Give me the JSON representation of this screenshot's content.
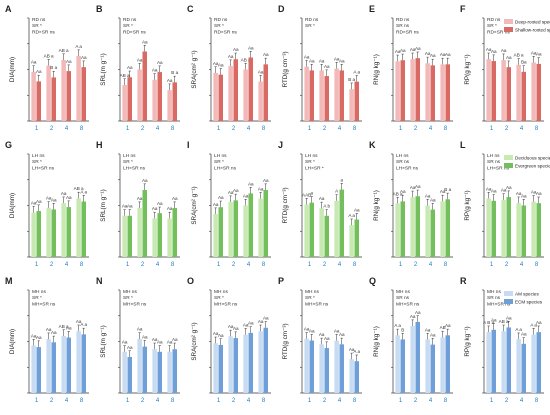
{
  "figure": {
    "x_categories": [
      "1",
      "2",
      "4",
      "8"
    ],
    "legends": [
      {
        "entries": [
          {
            "label": "Deep-rooted species",
            "color": "#f3b8b8"
          },
          {
            "label": "Shallow-rooted species",
            "color": "#d96a63"
          }
        ]
      },
      {
        "entries": [
          {
            "label": "Deciduous species",
            "color": "#c9e9b2"
          },
          {
            "label": "Evergreen species",
            "color": "#72bf5c"
          }
        ]
      },
      {
        "entries": [
          {
            "label": "AM species",
            "color": "#c7dcf3"
          },
          {
            "label": "ECM species",
            "color": "#6f9fd8"
          }
        ]
      }
    ]
  },
  "chart_data": [
    {
      "type": "bar",
      "panel": "A",
      "ylabel": "DIA(mm)",
      "ylim": [
        0,
        1.3
      ],
      "categories": [
        "1",
        "2",
        "4",
        "8"
      ],
      "stats": [
        "RD ns",
        "SR *",
        "RD×SR ns"
      ],
      "series": [
        {
          "name": "Deep-rooted species",
          "values": [
            0.62,
            0.7,
            0.77,
            0.82
          ]
        },
        {
          "name": "Shallow-rooted species",
          "values": [
            0.5,
            0.55,
            0.63,
            0.68
          ]
        }
      ],
      "letters": [
        [
          "Aa",
          "AB a",
          "AB a",
          "A a"
        ],
        [
          "Aa",
          "B a",
          "Aa",
          "Aa"
        ]
      ]
    },
    {
      "type": "bar",
      "panel": "B",
      "ylabel": "SRL(m g⁻¹)",
      "ylim": [
        0,
        40
      ],
      "categories": [
        "1",
        "2",
        "4",
        "8"
      ],
      "stats": [
        "RD ns",
        "SR *",
        "RD×SR ns"
      ],
      "series": [
        {
          "name": "Deep-rooted species",
          "values": [
            14,
            20,
            16,
            12
          ]
        },
        {
          "name": "Shallow-rooted species",
          "values": [
            17,
            27,
            19,
            15
          ]
        }
      ],
      "letters": [
        [
          "AB a",
          "Aa",
          "Aa",
          "Aa"
        ],
        [
          "Aa",
          "Aa",
          "Aa",
          "B a"
        ]
      ]
    },
    {
      "type": "bar",
      "panel": "C",
      "ylabel": "SRA(cm² g⁻¹)",
      "ylim": [
        0,
        60
      ],
      "categories": [
        "1",
        "2",
        "4",
        "8"
      ],
      "stats": [
        "RD ns",
        "SR *",
        "RD×SR ns"
      ],
      "series": [
        {
          "name": "Deep-rooted species",
          "values": [
            28,
            32,
            30,
            23
          ]
        },
        {
          "name": "Shallow-rooted species",
          "values": [
            27,
            36,
            37,
            33
          ]
        }
      ],
      "letters": [
        [
          "Aa",
          "Aa",
          "AB a",
          "Aa"
        ],
        [
          "Aa",
          "Aa",
          "Aa",
          "Aa"
        ]
      ]
    },
    {
      "type": "bar",
      "panel": "D",
      "ylabel": "RTD(g cm⁻³)",
      "ylim": [
        0,
        0.55
      ],
      "categories": [
        "1",
        "2",
        "4",
        "8"
      ],
      "stats": [
        "RD ns",
        "SR *"
      ],
      "series": [
        {
          "name": "Deep-rooted species",
          "values": [
            0.29,
            0.27,
            0.28,
            0.17
          ]
        },
        {
          "name": "Shallow-rooted species",
          "values": [
            0.27,
            0.24,
            0.27,
            0.21
          ]
        }
      ],
      "letters": [
        [
          "Aa",
          "Aa",
          "Aa",
          "B a"
        ],
        [
          "Aa",
          "Aa",
          "Aa",
          "A a"
        ]
      ]
    },
    {
      "type": "bar",
      "panel": "E",
      "ylabel": "RN(g kg⁻¹)",
      "ylim": [
        0,
        10
      ],
      "categories": [
        "1",
        "2",
        "4",
        "8"
      ],
      "stats": [
        "RD ns",
        "SR ns",
        "RD×SR ns"
      ],
      "series": [
        {
          "name": "Deep-rooted species",
          "values": [
            5.8,
            6.0,
            5.6,
            5.5
          ]
        },
        {
          "name": "Shallow-rooted species",
          "values": [
            5.9,
            6.1,
            5.4,
            5.5
          ]
        }
      ],
      "letters": [
        [
          "Aa",
          "Aa",
          "Aa",
          "Aa"
        ],
        [
          "Aa",
          "Aa",
          "Aa",
          "Aa"
        ]
      ]
    },
    {
      "type": "bar",
      "panel": "F",
      "ylabel": "RP(g kg⁻¹)",
      "ylim": [
        0,
        2.2
      ],
      "categories": [
        "1",
        "2",
        "4",
        "8"
      ],
      "stats": [
        "RD ns",
        "SR *",
        "RD×SR ns"
      ],
      "series": [
        {
          "name": "Deep-rooted species",
          "values": [
            1.32,
            1.3,
            1.2,
            1.25
          ]
        },
        {
          "name": "Shallow-rooted species",
          "values": [
            1.28,
            1.15,
            1.05,
            1.22
          ]
        }
      ],
      "letters": [
        [
          "Aa",
          "Aa",
          "AB a",
          "Aa"
        ],
        [
          "Aa",
          "Aa",
          "Ba",
          "Aa"
        ]
      ]
    },
    {
      "type": "bar",
      "panel": "G",
      "ylabel": "DIA(mm)",
      "ylim": [
        0,
        1.3
      ],
      "categories": [
        "1",
        "2",
        "4",
        "8"
      ],
      "stats": [
        "LH ns",
        "SR *",
        "LH×SR ns"
      ],
      "series": [
        {
          "name": "Deciduous species",
          "values": [
            0.56,
            0.62,
            0.68,
            0.74
          ]
        },
        {
          "name": "Evergreen species",
          "values": [
            0.58,
            0.6,
            0.63,
            0.7
          ]
        }
      ],
      "letters": [
        [
          "Aa",
          "Aa",
          "Aa",
          "AB a"
        ],
        [
          "Aa",
          "Aa",
          "Aa",
          "A a"
        ]
      ]
    },
    {
      "type": "bar",
      "panel": "H",
      "ylabel": "SRL(m g⁻¹)",
      "ylim": [
        0,
        40
      ],
      "categories": [
        "1",
        "2",
        "4",
        "8"
      ],
      "stats": [
        "LH ns",
        "SR *",
        "LH×SR ns"
      ],
      "series": [
        {
          "name": "Deciduous species",
          "values": [
            16,
            19,
            15,
            15
          ]
        },
        {
          "name": "Evergreen species",
          "values": [
            16,
            26,
            17,
            19
          ]
        }
      ],
      "letters": [
        [
          "Aa",
          "Aa",
          "Aa",
          "Aa"
        ],
        [
          "Aa",
          "Aa",
          "Aa",
          "Aa"
        ]
      ]
    },
    {
      "type": "bar",
      "panel": "I",
      "ylabel": "SRA(cm² g⁻¹)",
      "ylim": [
        0,
        60
      ],
      "categories": [
        "1",
        "2",
        "4",
        "8"
      ],
      "stats": [
        "LH ns",
        "SR *",
        "LH×SR ns"
      ],
      "series": [
        {
          "name": "Deciduous species",
          "values": [
            25,
            32,
            30,
            34
          ]
        },
        {
          "name": "Evergreen species",
          "values": [
            29,
            33,
            37,
            39
          ]
        }
      ],
      "letters": [
        [
          "Aa",
          "Aa",
          "Aa",
          "Aa"
        ],
        [
          "Aa",
          "Aa",
          "Aa",
          "Aa"
        ]
      ]
    },
    {
      "type": "bar",
      "panel": "J",
      "ylabel": "RTD(g cm⁻³)",
      "ylim": [
        0,
        0.55
      ],
      "categories": [
        "1",
        "2",
        "4",
        "8"
      ],
      "stats": [
        "LH ns",
        "SR *",
        "LH×SR *"
      ],
      "series": [
        {
          "name": "Deciduous species",
          "values": [
            0.28,
            0.26,
            0.3,
            0.17
          ]
        },
        {
          "name": "Evergreen species",
          "values": [
            0.29,
            0.22,
            0.36,
            0.2
          ]
        }
      ],
      "letters": [
        [
          "AAB",
          "Aa",
          "A",
          "A a"
        ],
        [
          "a",
          "A b",
          "a",
          "Aa"
        ]
      ]
    },
    {
      "type": "bar",
      "panel": "K",
      "ylabel": "RN(g kg⁻¹)",
      "ylim": [
        0,
        10
      ],
      "categories": [
        "1",
        "2",
        "4",
        "8"
      ],
      "stats": [
        "LH ns",
        "SR ns",
        "LH×SR ns"
      ],
      "series": [
        {
          "name": "Deciduous species",
          "values": [
            5.2,
            5.8,
            5.0,
            5.4
          ]
        },
        {
          "name": "Evergreen species",
          "values": [
            5.4,
            5.9,
            4.6,
            5.6
          ]
        }
      ],
      "letters": [
        [
          "AB a",
          "Aa",
          "Aa",
          "Aa"
        ],
        [
          "Aa",
          "Aa",
          "Aa",
          "B a"
        ]
      ]
    },
    {
      "type": "bar",
      "panel": "L",
      "ylabel": "RP(g kg⁻¹)",
      "ylim": [
        0,
        2.2
      ],
      "categories": [
        "1",
        "2",
        "4",
        "8"
      ],
      "stats": [
        "LH ns",
        "SR ns",
        "LH×SR ns"
      ],
      "series": [
        {
          "name": "Deciduous species",
          "values": [
            1.25,
            1.22,
            1.15,
            1.18
          ]
        },
        {
          "name": "Evergreen species",
          "values": [
            1.2,
            1.28,
            1.1,
            1.15
          ]
        }
      ],
      "letters": [
        [
          "Aa",
          "Aa",
          "Aa",
          "Aa"
        ],
        [
          "Aa",
          "Aa",
          "Aa",
          "Aa"
        ]
      ]
    },
    {
      "type": "bar",
      "panel": "M",
      "ylabel": "DIA(mm)",
      "ylim": [
        0,
        1.3
      ],
      "categories": [
        "1",
        "2",
        "4",
        "8"
      ],
      "stats": [
        "MH ns",
        "SR *",
        "MH×SR ns"
      ],
      "series": [
        {
          "name": "AM species",
          "values": [
            0.6,
            0.68,
            0.72,
            0.78
          ]
        },
        {
          "name": "ECM species",
          "values": [
            0.58,
            0.64,
            0.7,
            0.74
          ]
        }
      ],
      "letters": [
        [
          "Aa",
          "Aa",
          "AB a",
          "Aa"
        ],
        [
          "Aa",
          "Aa",
          "Aa",
          "A a"
        ]
      ]
    },
    {
      "type": "bar",
      "panel": "N",
      "ylabel": "SRL(m g⁻¹)",
      "ylim": [
        0,
        40
      ],
      "categories": [
        "1",
        "2",
        "4",
        "8"
      ],
      "stats": [
        "MH ns",
        "SR *",
        "MH×SR ns"
      ],
      "series": [
        {
          "name": "AM species",
          "values": [
            16,
            21,
            17,
            16
          ]
        },
        {
          "name": "ECM species",
          "values": [
            14,
            18,
            16,
            17
          ]
        }
      ],
      "letters": [
        [
          "Aa",
          "Aa",
          "Aa",
          "Aa"
        ],
        [
          "Aa",
          "Aa",
          "Aa",
          "Aa"
        ]
      ]
    },
    {
      "type": "bar",
      "panel": "O",
      "ylabel": "SRA(cm² g⁻¹)",
      "ylim": [
        0,
        60
      ],
      "categories": [
        "1",
        "2",
        "4",
        "8"
      ],
      "stats": [
        "MH ns",
        "SR *",
        "MH×SR ns"
      ],
      "series": [
        {
          "name": "AM species",
          "values": [
            29,
            33,
            34,
            36
          ]
        },
        {
          "name": "ECM species",
          "values": [
            28,
            32,
            35,
            38
          ]
        }
      ],
      "letters": [
        [
          "Aa",
          "Aa",
          "Aa",
          "Aa"
        ],
        [
          "Aa",
          "Aa",
          "Aa",
          "Aa"
        ]
      ]
    },
    {
      "type": "bar",
      "panel": "P",
      "ylabel": "RTD(g cm⁻³)",
      "ylim": [
        0,
        0.55
      ],
      "categories": [
        "1",
        "2",
        "4",
        "8"
      ],
      "stats": [
        "MH ns",
        "SR *",
        "MH×SR ns"
      ],
      "series": [
        {
          "name": "AM species",
          "values": [
            0.29,
            0.26,
            0.28,
            0.18
          ]
        },
        {
          "name": "ECM species",
          "values": [
            0.28,
            0.24,
            0.26,
            0.17
          ]
        }
      ],
      "letters": [
        [
          "Aa",
          "Aa",
          "Aa",
          "Aa"
        ],
        [
          "Aa",
          "Aa",
          "Aa",
          "A a"
        ]
      ]
    },
    {
      "type": "bar",
      "panel": "Q",
      "ylabel": "RN(g kg⁻¹)",
      "ylim": [
        0,
        10
      ],
      "categories": [
        "1",
        "2",
        "4",
        "8"
      ],
      "stats": [
        "MH ns",
        "SR ns",
        "MH×SR ns"
      ],
      "series": [
        {
          "name": "AM species",
          "values": [
            5.6,
            6.5,
            5.2,
            5.4
          ]
        },
        {
          "name": "ECM species",
          "values": [
            5.2,
            6.9,
            4.7,
            5.6
          ]
        }
      ],
      "letters": [
        [
          "A a",
          "Aa",
          "Aa",
          "AB"
        ],
        [
          "B",
          "Aa",
          "Aa",
          "Aa"
        ]
      ]
    },
    {
      "type": "bar",
      "panel": "R",
      "ylabel": "RP(g kg⁻¹)",
      "ylim": [
        0,
        2.2
      ],
      "categories": [
        "1",
        "2",
        "4",
        "8"
      ],
      "stats": [
        "MH ns",
        "SR ns",
        "MH×SR ns"
      ],
      "series": [
        {
          "name": "AM species",
          "values": [
            1.3,
            1.32,
            1.15,
            1.25
          ]
        },
        {
          "name": "ECM species",
          "values": [
            1.35,
            1.4,
            1.05,
            1.3
          ]
        }
      ],
      "letters": [
        [
          "A B a",
          "AB a",
          "A a",
          "A a"
        ],
        [
          "Aa",
          "Aa",
          "Aa",
          "Aa"
        ]
      ]
    }
  ]
}
